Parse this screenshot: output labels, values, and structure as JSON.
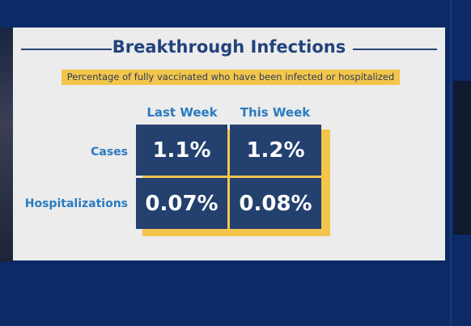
{
  "slide": {
    "title": "Breakthrough Infections",
    "subtitle": "Percentage of fully vaccinated who have been infected or hospitalized",
    "columns": [
      "Last Week",
      "This Week"
    ],
    "rows": [
      {
        "label": "Cases",
        "values": [
          "1.1%",
          "1.2%"
        ]
      },
      {
        "label": "Hospitalizations",
        "values": [
          "0.07%",
          "0.08%"
        ]
      }
    ]
  },
  "colors": {
    "background": "#0c2a66",
    "slide": "#ececec",
    "title": "#23437c",
    "accent_yellow": "#f3c64b",
    "cell_fill": "#23406e",
    "label_blue": "#2a7ac0"
  }
}
